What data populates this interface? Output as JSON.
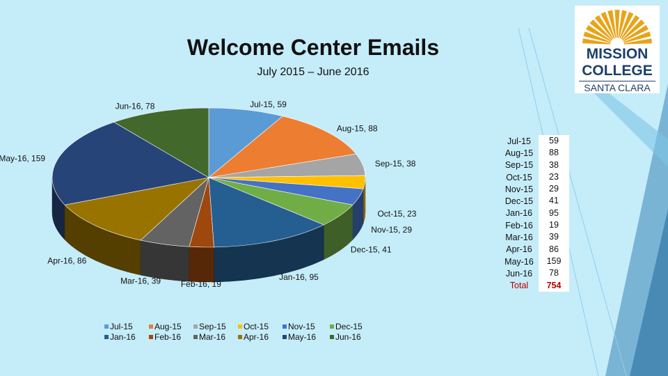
{
  "title": "Welcome Center Emails",
  "subtitle": "July 2015 – June 2016",
  "logo": {
    "line1": "MISSION",
    "line2": "COLLEGE",
    "line3": "SANTA CLARA",
    "color": "#1d3f6c",
    "sun_color": "#e8a317"
  },
  "chart_data": {
    "type": "pie",
    "categories": [
      "Jul-15",
      "Aug-15",
      "Sep-15",
      "Oct-15",
      "Nov-15",
      "Dec-15",
      "Jan-16",
      "Feb-16",
      "Mar-16",
      "Apr-16",
      "May-16",
      "Jun-16"
    ],
    "values": [
      59,
      88,
      38,
      23,
      29,
      41,
      95,
      19,
      39,
      86,
      159,
      78
    ],
    "colors": [
      "#5b9bd5",
      "#ed7d31",
      "#a5a5a5",
      "#ffc000",
      "#4472c4",
      "#70ad47",
      "#255e91",
      "#9e480e",
      "#636363",
      "#997300",
      "#264478",
      "#43682b"
    ],
    "data_labels": [
      "Jul-15, 59",
      "Aug-15, 88",
      "Sep-15, 38",
      "Oct-15, 23",
      "Nov-15, 29",
      "Dec-15, 41",
      "Jan-16, 95",
      "Feb-16, 19",
      "Mar-16, 39",
      "Apr-16, 86",
      "May-16, 159",
      "Jun-16, 78"
    ],
    "style": "3d",
    "legend_position": "bottom",
    "legend": [
      "Jul-15",
      "Aug-15",
      "Sep-15",
      "Oct-15",
      "Nov-15",
      "Dec-15",
      "Jan-16",
      "Feb-16",
      "Mar-16",
      "Apr-16",
      "May-16",
      "Jun-16"
    ]
  },
  "table": {
    "rows": [
      {
        "month": "Jul-15",
        "value": "59"
      },
      {
        "month": "Aug-15",
        "value": "88"
      },
      {
        "month": "Sep-15",
        "value": "38"
      },
      {
        "month": "Oct-15",
        "value": "23"
      },
      {
        "month": "Nov-15",
        "value": "29"
      },
      {
        "month": "Dec-15",
        "value": "41"
      },
      {
        "month": "Jan-16",
        "value": "95"
      },
      {
        "month": "Feb-16",
        "value": "19"
      },
      {
        "month": "Mar-16",
        "value": "39"
      },
      {
        "month": "Apr-16",
        "value": "86"
      },
      {
        "month": "May-16",
        "value": "159"
      },
      {
        "month": "Jun-16",
        "value": "78"
      }
    ],
    "total_label": "Total",
    "total_value": "754"
  }
}
